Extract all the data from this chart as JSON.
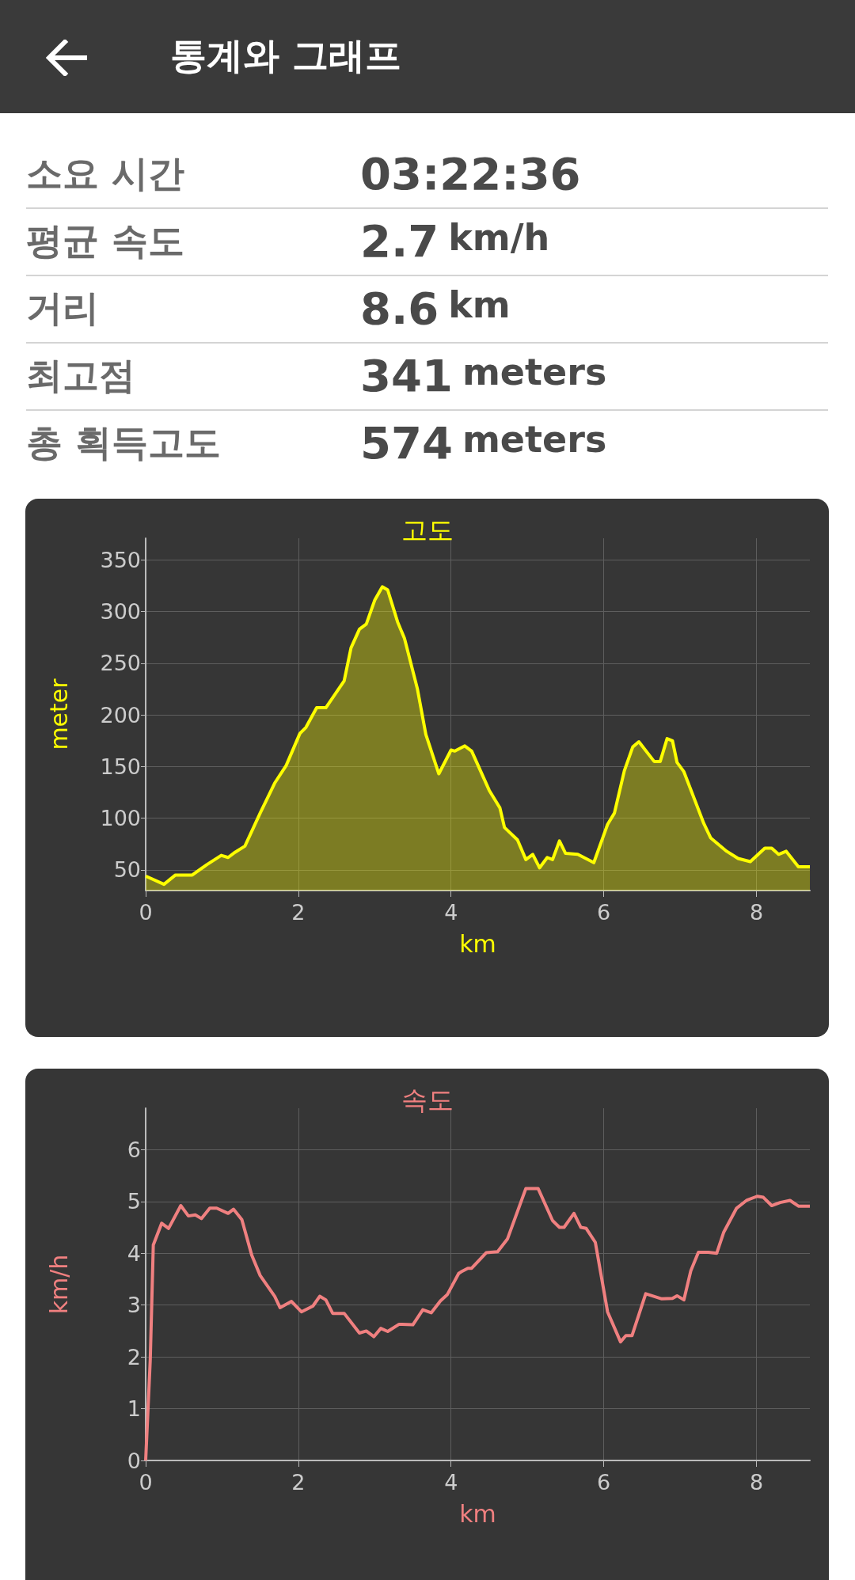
{
  "chart_data": [
    {
      "type": "other",
      "title": "통계와 그래프",
      "annotations": [
        "소요 시간",
        "03:22:36",
        "평균 속도",
        "2.7 km/h",
        "거리",
        "8.6 km",
        "최고점",
        "341 meters",
        "총 획득고도",
        "574 meters"
      ]
    },
    {
      "type": "area",
      "title": "고도",
      "xlabel": "km",
      "ylabel": "meter",
      "xlim": [
        0,
        8.7
      ],
      "xticks": [
        0,
        2,
        4,
        6,
        8
      ],
      "ylim": [
        30,
        371
      ],
      "yticks": [
        50,
        100,
        150,
        200,
        250,
        300,
        350
      ],
      "grid": true,
      "x": [
        0,
        0.24,
        0.39,
        0.61,
        0.8,
        0.99,
        1.08,
        1.17,
        1.3,
        1.5,
        1.69,
        1.84,
        2.02,
        2.1,
        2.24,
        2.36,
        2.6,
        2.69,
        2.8,
        2.89,
        3.0,
        3.1,
        3.17,
        3.3,
        3.39,
        3.56,
        3.67,
        3.84,
        4.0,
        4.05,
        4.18,
        4.27,
        4.5,
        4.64,
        4.7,
        4.87,
        4.98,
        5.07,
        5.16,
        5.26,
        5.33,
        5.42,
        5.5,
        5.66,
        5.87,
        6.05,
        6.14,
        6.27,
        6.38,
        6.46,
        6.66,
        6.74,
        6.83,
        6.9,
        6.96,
        7.05,
        7.31,
        7.4,
        7.61,
        7.76,
        7.92,
        8.11,
        8.2,
        8.29,
        8.39,
        8.55,
        8.7
      ],
      "series": [
        {
          "color": "#ffff00",
          "values": [
            44,
            36,
            45,
            45,
            55,
            64,
            62,
            67,
            73,
            105,
            134,
            151,
            182,
            188,
            207,
            207,
            233,
            265,
            283,
            288,
            311,
            324,
            321,
            290,
            274,
            225,
            181,
            143,
            166,
            165,
            170,
            165,
            127,
            110,
            91,
            79,
            60,
            65,
            52,
            62,
            60,
            78,
            66,
            65,
            57,
            94,
            105,
            146,
            169,
            174,
            155,
            155,
            177,
            175,
            154,
            145,
            95,
            81,
            68,
            61,
            58,
            71,
            71,
            65,
            68,
            53,
            53
          ]
        }
      ]
    },
    {
      "type": "line",
      "title": "속도",
      "xlabel": "km",
      "ylabel": "km/h",
      "xlim": [
        0,
        8.7
      ],
      "xticks": [
        0,
        2,
        4,
        6,
        8
      ],
      "ylim": [
        0,
        6.8
      ],
      "yticks": [
        0,
        1,
        2,
        3,
        4,
        5,
        6
      ],
      "grid": true,
      "x": [
        0,
        0.06,
        0.1,
        0.21,
        0.3,
        0.46,
        0.56,
        0.65,
        0.73,
        0.84,
        0.93,
        1.08,
        1.15,
        1.26,
        1.39,
        1.5,
        1.69,
        1.76,
        1.91,
        2.04,
        2.19,
        2.28,
        2.36,
        2.45,
        2.6,
        2.8,
        2.89,
        2.99,
        3.08,
        3.17,
        3.32,
        3.5,
        3.63,
        3.74,
        3.86,
        3.95,
        4.1,
        4.13,
        4.22,
        4.27,
        4.46,
        4.61,
        4.74,
        4.98,
        5.14,
        5.33,
        5.42,
        5.48,
        5.61,
        5.7,
        5.77,
        5.89,
        6.05,
        6.22,
        6.29,
        6.37,
        6.55,
        6.76,
        6.9,
        6.96,
        7.05,
        7.14,
        7.24,
        7.37,
        7.48,
        7.57,
        7.74,
        7.87,
        8.01,
        8.09,
        8.2,
        8.31,
        8.44,
        8.55,
        8.7
      ],
      "series": [
        {
          "color": "#f08080",
          "values": [
            0,
            1.94,
            4.16,
            4.58,
            4.48,
            4.92,
            4.72,
            4.74,
            4.67,
            4.87,
            4.87,
            4.77,
            4.85,
            4.65,
            3.96,
            3.57,
            3.17,
            2.95,
            3.07,
            2.87,
            2.98,
            3.17,
            3.1,
            2.84,
            2.84,
            2.46,
            2.5,
            2.39,
            2.55,
            2.49,
            2.63,
            2.62,
            2.91,
            2.85,
            3.08,
            3.2,
            3.61,
            3.64,
            3.71,
            3.71,
            4.01,
            4.03,
            4.28,
            5.25,
            5.25,
            4.63,
            4.5,
            4.5,
            4.77,
            4.5,
            4.48,
            4.21,
            2.87,
            2.29,
            2.41,
            2.41,
            3.22,
            3.12,
            3.13,
            3.18,
            3.1,
            3.66,
            4.02,
            4.02,
            4.0,
            4.4,
            4.87,
            5.02,
            5.1,
            5.08,
            4.92,
            4.98,
            5.02,
            4.91,
            4.91
          ]
        }
      ]
    }
  ]
}
